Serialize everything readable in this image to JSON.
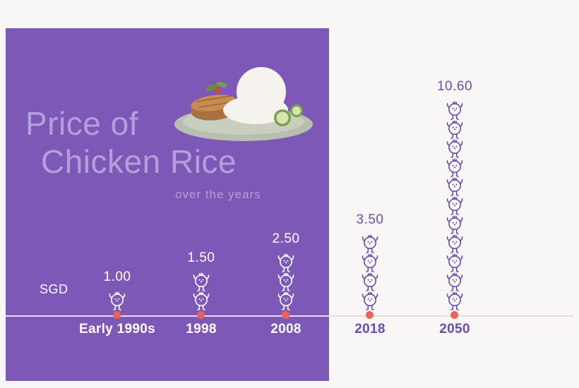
{
  "panel": {
    "title_line1": "Price of",
    "title_line2": "Chicken Rice",
    "subtitle": "over the years",
    "currency_label": "SGD"
  },
  "colors": {
    "canvas_bg": "#f9f7f6",
    "panel_bg": "#7d58b6",
    "title_text": "#b49fdd",
    "light_text": "#ffffff",
    "purple_text": "#6c4bae",
    "chick_white": "#ffffff",
    "chick_purple": "#6c4bae",
    "dot_red": "#ea6357",
    "baseline_gray": "#e6e0dc"
  },
  "chart_data": {
    "type": "bar",
    "title": "Price of Chicken Rice",
    "subtitle": "over the years",
    "unit": "SGD",
    "ylabel": "SGD",
    "categories": [
      "Early 1990s",
      "1998",
      "2008",
      "2018",
      "2050"
    ],
    "values": [
      1.0,
      1.5,
      2.5,
      3.5,
      10.6
    ],
    "value_labels": [
      "1.00",
      "1.50",
      "2.50",
      "3.50",
      "10.60"
    ],
    "chick_counts": [
      1,
      2,
      3,
      4,
      11
    ],
    "icon": "chick-icon",
    "ylim": [
      0,
      11
    ],
    "grid": false,
    "legend_position": "none"
  }
}
